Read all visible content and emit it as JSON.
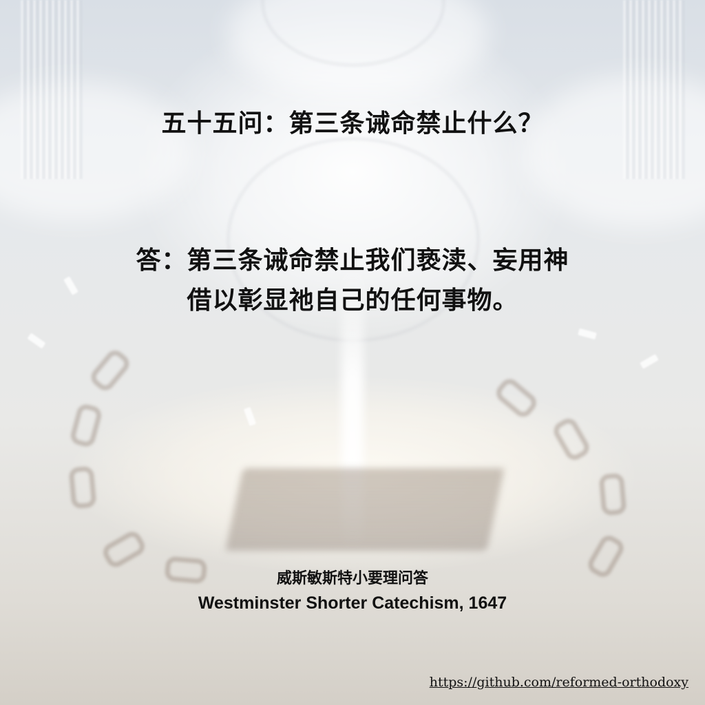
{
  "question": "五十五问：第三条诫命禁止什么？",
  "answer": {
    "line1": "答：第三条诫命禁止我们亵渎、妄用神",
    "line2": "借以彰显祂自己的任何事物。"
  },
  "source": {
    "title_zh": "威斯敏斯特小要理问答",
    "title_en": "Westminster Shorter Catechism, 1647"
  },
  "link": {
    "text": "https://github.com/reformed-orthodoxy"
  },
  "background": {
    "description_icons": [
      "clouds",
      "light-beam",
      "halo-circle",
      "open-book",
      "broken-chain",
      "glass-shards",
      "pillars"
    ]
  }
}
